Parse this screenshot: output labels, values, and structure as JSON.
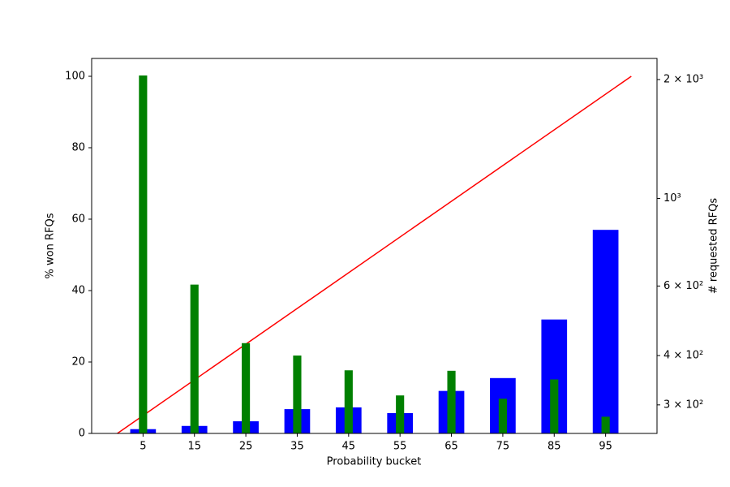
{
  "chart_data": {
    "type": "bar",
    "x_label": "Probability bucket",
    "y_label": "% won RFQs",
    "y2_label": "# requested RFQs",
    "x": [
      5,
      15,
      25,
      35,
      45,
      55,
      65,
      75,
      85,
      95
    ],
    "xlim": [
      -5,
      105
    ],
    "xticks": [
      5,
      15,
      25,
      35,
      45,
      55,
      65,
      75,
      85,
      95
    ],
    "ylim": [
      0,
      105
    ],
    "yticks": [
      0,
      20,
      40,
      60,
      80,
      100
    ],
    "y2lim": [
      254,
      2262
    ],
    "y2scale": "log",
    "y2ticks": [
      {
        "value": 300,
        "label": "3 × 10²"
      },
      {
        "value": 400,
        "label": "4 × 10²"
      },
      {
        "value": 600,
        "label": "6 × 10²"
      },
      {
        "value": 1000,
        "label": "10³"
      },
      {
        "value": 2000,
        "label": "2 × 10³"
      }
    ],
    "series": [
      {
        "type": "bar",
        "color": "#0000ff",
        "values": [
          1.2,
          2.1,
          3.4,
          6.8,
          7.3,
          5.7,
          11.9,
          15.5,
          31.9,
          57
        ]
      },
      {
        "type": "line",
        "color": "#ff0000",
        "x": [
          0,
          100
        ],
        "values": [
          0,
          100
        ]
      },
      {
        "type": "bar",
        "axis": "y2",
        "color": "#008000",
        "values": [
          2048,
          605,
          430,
          400,
          367,
          317,
          366,
          311,
          348,
          280
        ]
      }
    ]
  }
}
